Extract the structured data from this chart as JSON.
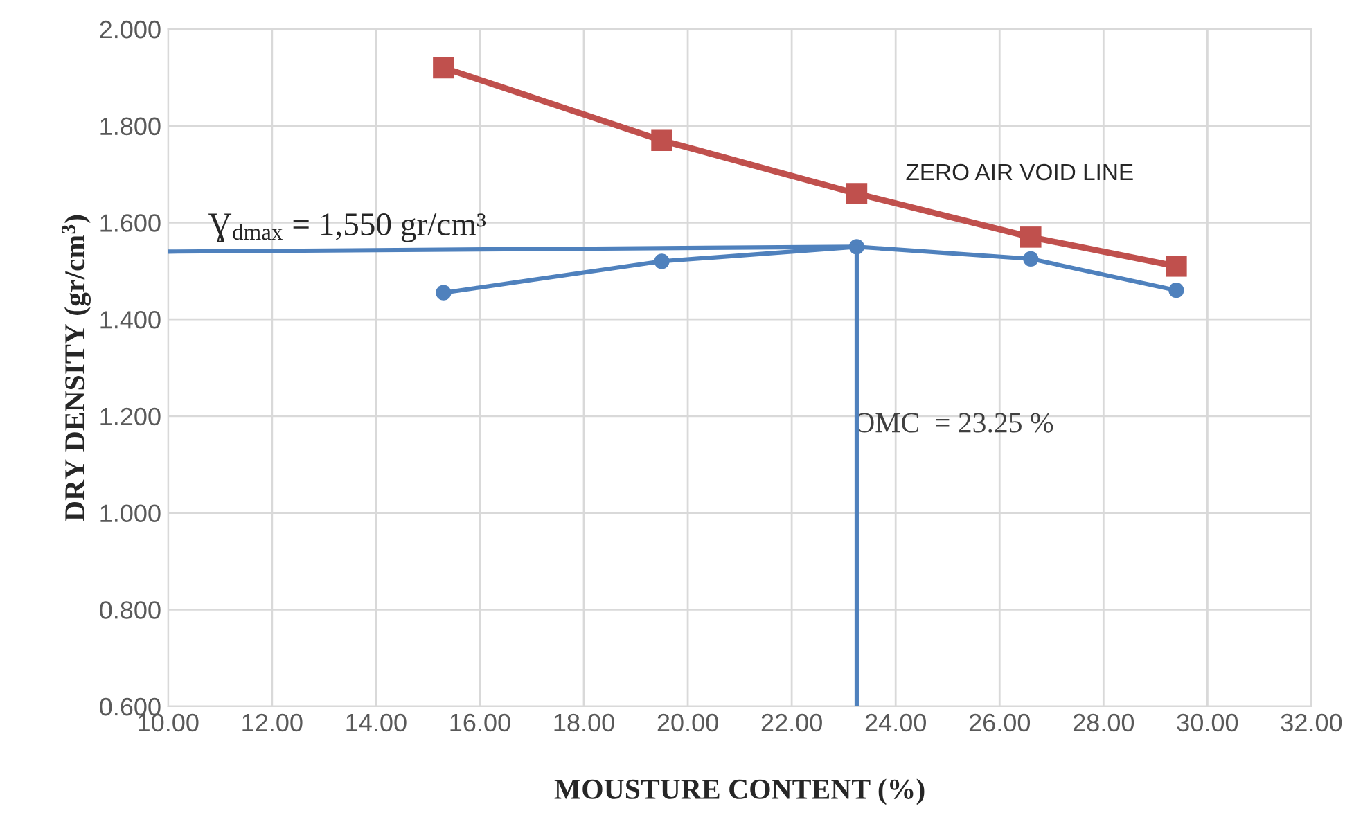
{
  "chart_data": {
    "type": "line",
    "xlabel": "MOUSTURE CONTENT (%)",
    "ylabel": "DRY DENSITY (gr/cm$^{3}$)",
    "xlim": [
      10,
      32
    ],
    "ylim": [
      0.6,
      2.0
    ],
    "xticks": [
      {
        "value": 10,
        "label": "10.00"
      },
      {
        "value": 12,
        "label": "12.00"
      },
      {
        "value": 14,
        "label": "14.00"
      },
      {
        "value": 16,
        "label": "16.00"
      },
      {
        "value": 18,
        "label": "18.00"
      },
      {
        "value": 20,
        "label": "20.00"
      },
      {
        "value": 22,
        "label": "22.00"
      },
      {
        "value": 24,
        "label": "24.00"
      },
      {
        "value": 26,
        "label": "26.00"
      },
      {
        "value": 28,
        "label": "28.00"
      },
      {
        "value": 30,
        "label": "30.00"
      },
      {
        "value": 32,
        "label": "32.00"
      }
    ],
    "yticks": [
      {
        "value": 0.6,
        "label": "0.600"
      },
      {
        "value": 0.8,
        "label": "0.800"
      },
      {
        "value": 1.0,
        "label": "1.000"
      },
      {
        "value": 1.2,
        "label": "1.200"
      },
      {
        "value": 1.4,
        "label": "1.400"
      },
      {
        "value": 1.6,
        "label": "1.600"
      },
      {
        "value": 1.8,
        "label": "1.800"
      },
      {
        "value": 2.0,
        "label": "2.000"
      }
    ],
    "grid": true,
    "legend": false,
    "series": [
      {
        "color": "#c0504d",
        "marker": "square",
        "x": [
          15.3,
          19.5,
          23.25,
          26.6,
          29.4
        ],
        "values": [
          1.92,
          1.77,
          1.66,
          1.57,
          1.51
        ]
      },
      {
        "color": "#4f81bd",
        "marker": "circle",
        "x": [
          15.3,
          19.5,
          23.25,
          26.6,
          29.4
        ],
        "values": [
          1.455,
          1.52,
          1.55,
          1.525,
          1.46
        ]
      },
      {
        "color": "#4f81bd",
        "marker": "none",
        "x": [
          10,
          23.25
        ],
        "values": [
          1.54,
          1.55
        ]
      },
      {
        "color": "#4f81bd",
        "marker": "none",
        "x": [
          23.25,
          23.25
        ],
        "values": [
          0.6,
          1.55
        ]
      }
    ],
    "annotations": [
      "Ɣ$_{dmax}$ = 1,550 gr/cm³",
      "OMC  = 23.25 %",
      "ZERO AIR VOID LINE"
    ]
  }
}
